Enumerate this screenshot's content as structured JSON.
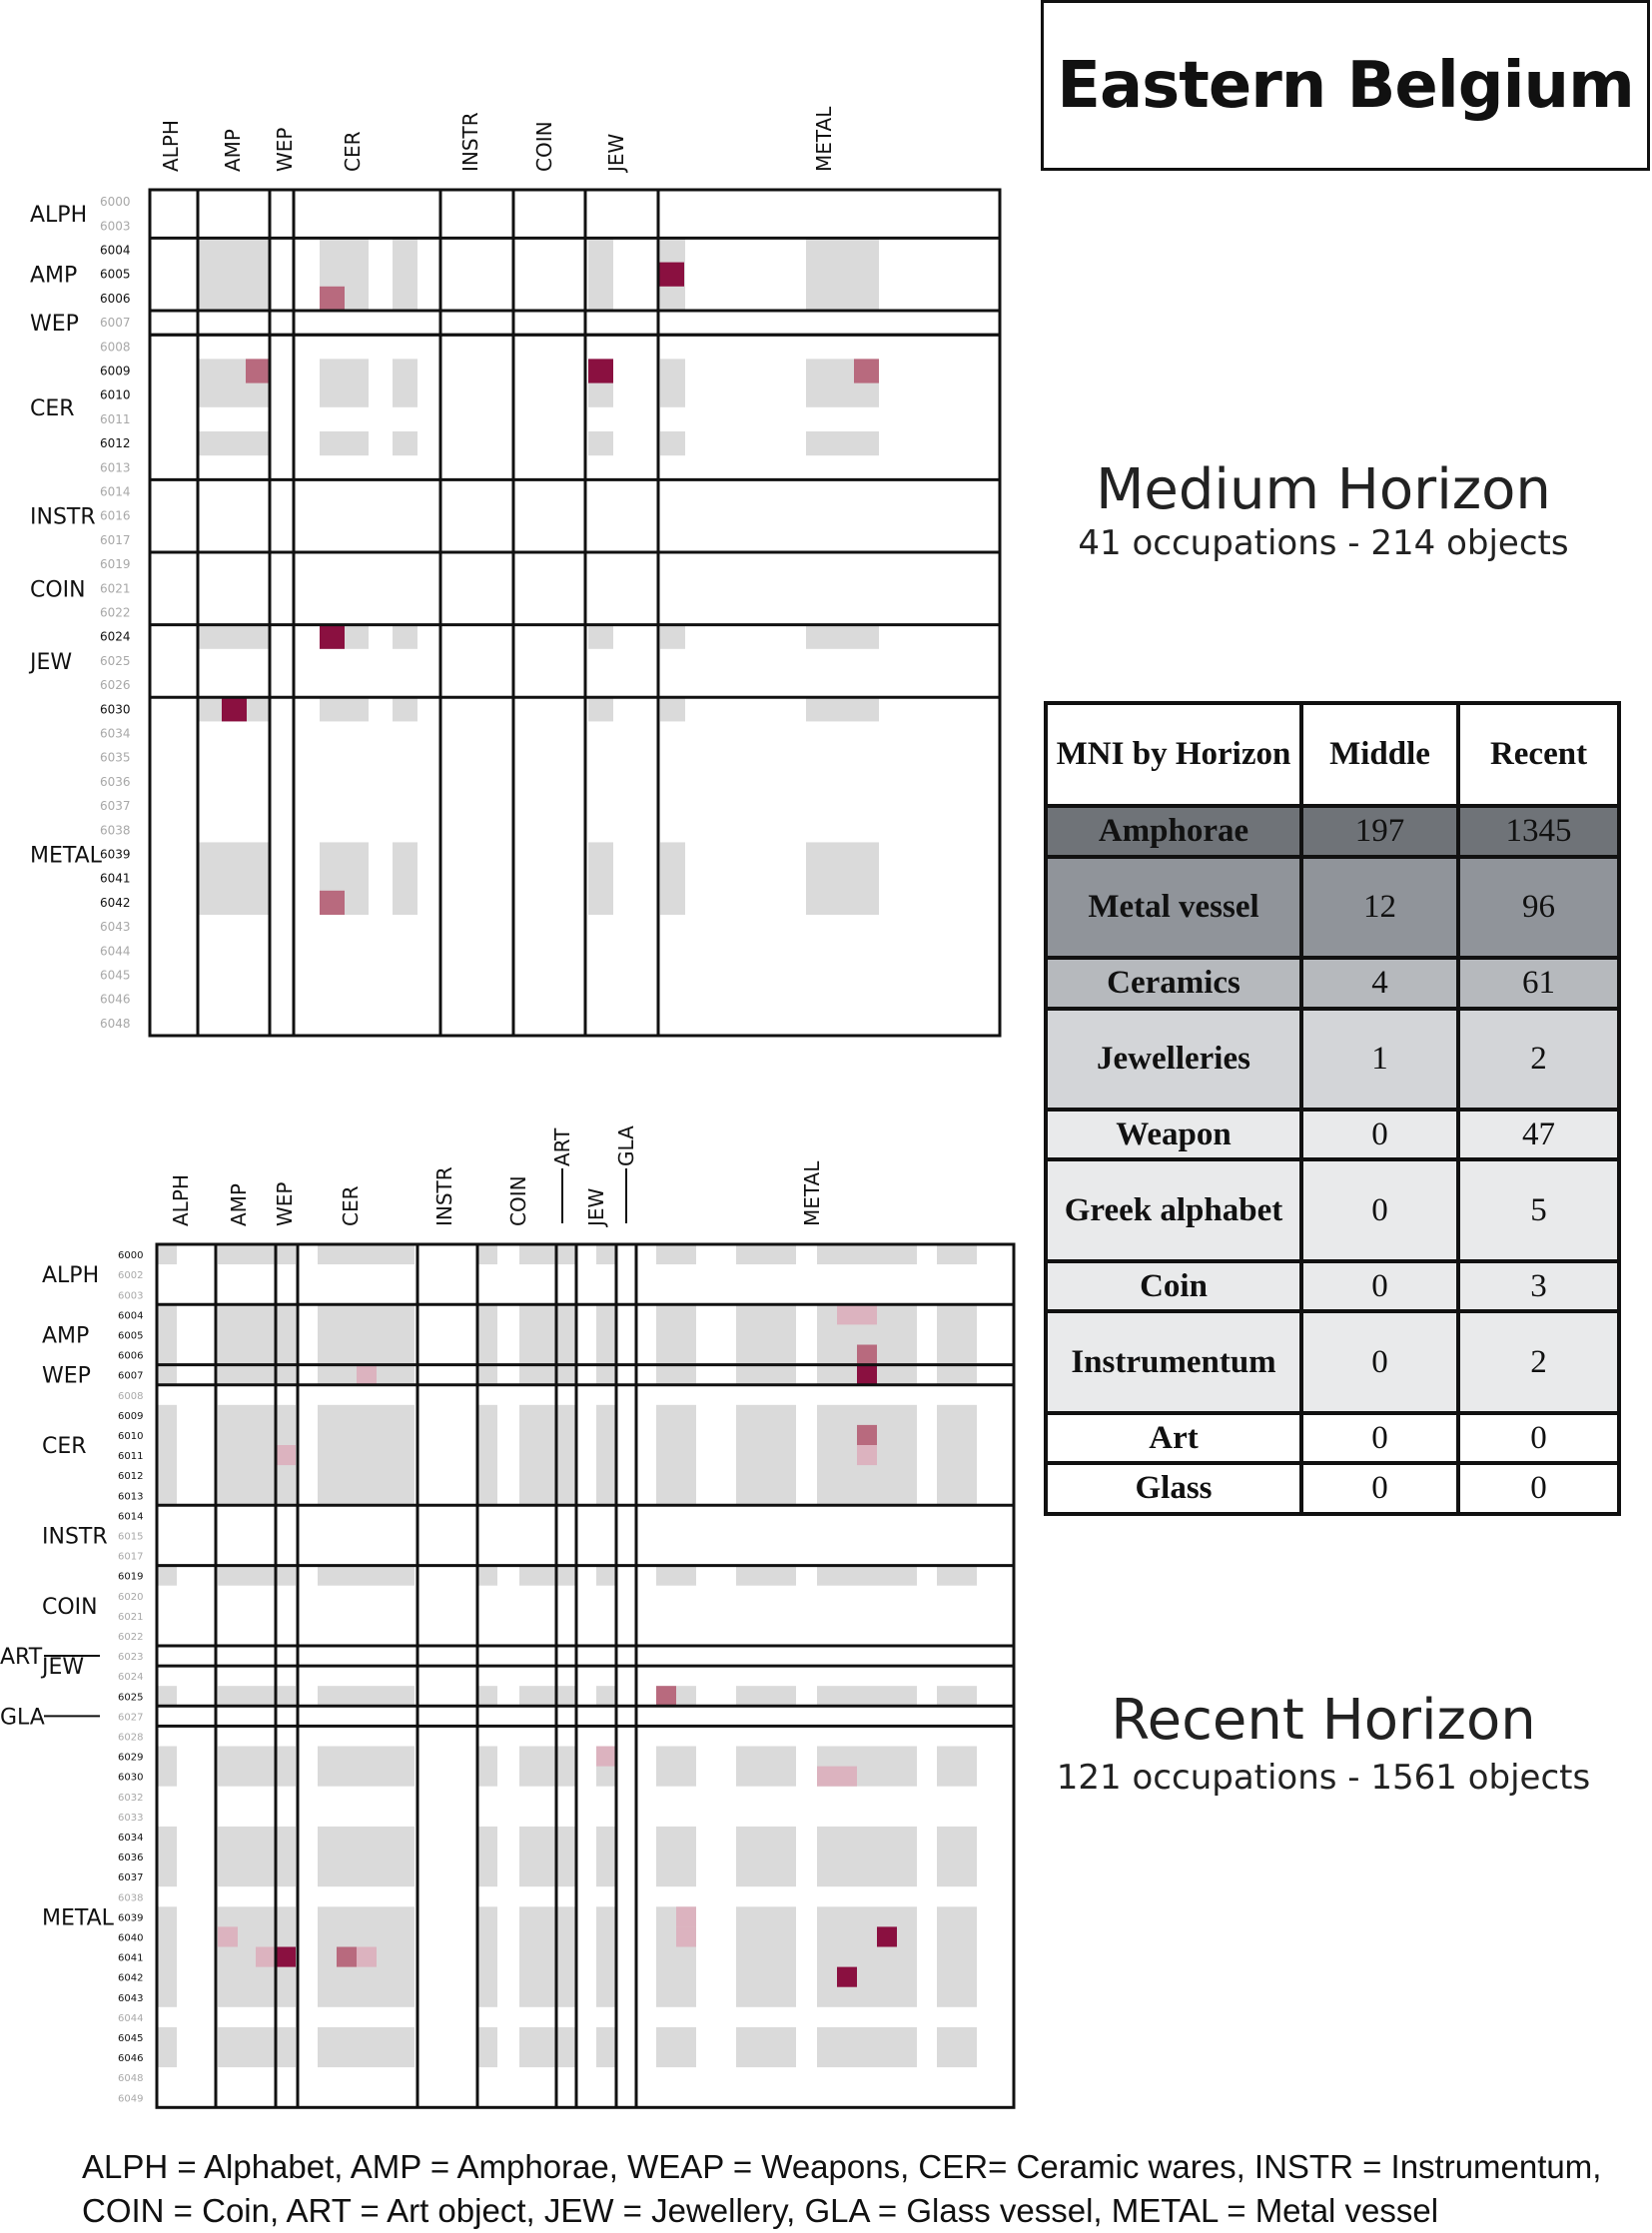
{
  "title": "Eastern Belgium",
  "colors": {
    "cell_gray": "#dadada",
    "dark": "#8a1040",
    "medium": "#b86a7e",
    "light": "#dcb3bf"
  },
  "medium_horizon": {
    "title": "Medium Horizon",
    "subtitle": "41 occupations - 214 objects"
  },
  "recent_horizon": {
    "title": "Recent Horizon",
    "subtitle": "121 occupations - 1561 objects"
  },
  "mni_table": {
    "header": [
      "MNI by Horizon",
      "Middle",
      "Recent"
    ],
    "rows": [
      {
        "category": "Amphorae",
        "middle": "197",
        "recent": "1345",
        "shade": "#6f7378"
      },
      {
        "category": "Metal vessel",
        "middle": "12",
        "recent": "96",
        "shade": "#90949a"
      },
      {
        "category": "Ceramics",
        "middle": "4",
        "recent": "61",
        "shade": "#b6b9bd"
      },
      {
        "category": "Jewelleries",
        "middle": "1",
        "recent": "2",
        "shade": "#d3d5d8"
      },
      {
        "category": "Weapon",
        "middle": "0",
        "recent": "47",
        "shade": "#e9eaeb"
      },
      {
        "category": "Greek alphabet",
        "middle": "0",
        "recent": "5",
        "shade": "#e9eaeb"
      },
      {
        "category": "Coin",
        "middle": "0",
        "recent": "3",
        "shade": "#e9eaeb"
      },
      {
        "category": "Instrumentum",
        "middle": "0",
        "recent": "2",
        "shade": "#e9eaeb"
      },
      {
        "category": "Art",
        "middle": "0",
        "recent": "0",
        "shade": "#ffffff"
      },
      {
        "category": "Glass",
        "middle": "0",
        "recent": "0",
        "shade": "#ffffff"
      }
    ]
  },
  "legend_lines": [
    "ALPH = Alphabet, AMP = Amphorae, WEAP = Weapons, CER= Ceramic wares, INSTR = Instrumentum,",
    "COIN = Coin, ART = Art object, JEW = Jewellery, GLA = Glass vessel, METAL = Metal vessel"
  ],
  "chart_data": [
    {
      "type": "heatmap",
      "title": "Medium Horizon",
      "codes": [
        "6000",
        "6003",
        "6004",
        "6005",
        "6006",
        "6007",
        "6008",
        "6009",
        "6010",
        "6011",
        "6012",
        "6013",
        "6014",
        "6016",
        "6017",
        "6019",
        "6021",
        "6022",
        "6024",
        "6025",
        "6026",
        "6030",
        "6034",
        "6035",
        "6036",
        "6037",
        "6038",
        "6039",
        "6041",
        "6042",
        "6043",
        "6044",
        "6045",
        "6046",
        "6048"
      ],
      "active_codes": [
        "6004",
        "6005",
        "6006",
        "6009",
        "6010",
        "6012",
        "6024",
        "6030",
        "6039",
        "6041",
        "6042"
      ],
      "row_groups": [
        {
          "label": "ALPH",
          "codes": [
            "6000",
            "6003"
          ]
        },
        {
          "label": "AMP",
          "codes": [
            "6004",
            "6005",
            "6006"
          ]
        },
        {
          "label": "WEP",
          "codes": [
            "6007"
          ]
        },
        {
          "label": "CER",
          "codes": [
            "6008",
            "6009",
            "6010",
            "6011",
            "6012",
            "6013"
          ]
        },
        {
          "label": "INSTR",
          "codes": [
            "6014",
            "6016",
            "6017"
          ]
        },
        {
          "label": "COIN",
          "codes": [
            "6019",
            "6021",
            "6022"
          ]
        },
        {
          "label": "JEW",
          "codes": [
            "6024",
            "6025",
            "6026"
          ]
        },
        {
          "label": "METAL",
          "codes": [
            "6030",
            "6034",
            "6035",
            "6036",
            "6037",
            "6038",
            "6039",
            "6041",
            "6042",
            "6043",
            "6044",
            "6045",
            "6046",
            "6048"
          ]
        }
      ],
      "col_groups": [
        "ALPH",
        "AMP",
        "WEP",
        "CER",
        "INSTR",
        "COIN",
        "JEW",
        "METAL"
      ],
      "gray_blocks": [
        {
          "cols": "AMP",
          "codes": [
            "6004",
            "6006"
          ]
        },
        {
          "cols": "CER",
          "codes": [
            "6004",
            "6006"
          ]
        },
        {
          "cols": "JEW",
          "codes": [
            "6004",
            "6006"
          ]
        },
        {
          "cols": "METAL",
          "codes": [
            "6004",
            "6006"
          ]
        },
        {
          "cols": "AMP",
          "codes": [
            "6009",
            "6010"
          ]
        },
        {
          "cols": "CER",
          "codes": [
            "6009",
            "6010"
          ]
        },
        {
          "cols": "JEW",
          "codes": [
            "6009",
            "6010"
          ]
        },
        {
          "cols": "METAL",
          "codes": [
            "6009",
            "6010"
          ]
        },
        {
          "cols": "AMP",
          "codes": [
            "6012",
            "6012"
          ]
        },
        {
          "cols": "CER",
          "codes": [
            "6012",
            "6012"
          ]
        },
        {
          "cols": "JEW",
          "codes": [
            "6012",
            "6012"
          ]
        },
        {
          "cols": "METAL",
          "codes": [
            "6012",
            "6012"
          ]
        },
        {
          "cols": "AMP",
          "codes": [
            "6024",
            "6024"
          ]
        },
        {
          "cols": "CER",
          "codes": [
            "6024",
            "6024"
          ]
        },
        {
          "cols": "JEW",
          "codes": [
            "6024",
            "6024"
          ]
        },
        {
          "cols": "METAL",
          "codes": [
            "6024",
            "6024"
          ]
        },
        {
          "cols": "AMP",
          "codes": [
            "6030",
            "6030"
          ]
        },
        {
          "cols": "CER",
          "codes": [
            "6030",
            "6030"
          ]
        },
        {
          "cols": "JEW",
          "codes": [
            "6030",
            "6030"
          ]
        },
        {
          "cols": "METAL",
          "codes": [
            "6030",
            "6030"
          ]
        },
        {
          "cols": "AMP",
          "codes": [
            "6039",
            "6042"
          ]
        },
        {
          "cols": "CER",
          "codes": [
            "6039",
            "6042"
          ]
        },
        {
          "cols": "JEW",
          "codes": [
            "6039",
            "6042"
          ]
        },
        {
          "cols": "METAL",
          "codes": [
            "6039",
            "6042"
          ]
        }
      ],
      "colored_cells": [
        {
          "row": "6005",
          "col": "JEW",
          "level": "dark"
        },
        {
          "row": "6006",
          "col": "CER",
          "level": "medium"
        },
        {
          "row": "6009",
          "col": "AMP",
          "level": "medium"
        },
        {
          "row": "6009",
          "col": "JEW",
          "level": "dark"
        },
        {
          "row": "6009",
          "col": "METAL",
          "level": "medium"
        },
        {
          "row": "6024",
          "col": "CER",
          "level": "dark"
        },
        {
          "row": "6030",
          "col": "AMP",
          "level": "dark"
        },
        {
          "row": "6042",
          "col": "CER",
          "level": "medium"
        }
      ]
    },
    {
      "type": "heatmap",
      "title": "Recent Horizon",
      "codes": [
        "6000",
        "6002",
        "6003",
        "6004",
        "6005",
        "6006",
        "6007",
        "6008",
        "6009",
        "6010",
        "6011",
        "6012",
        "6013",
        "6014",
        "6015",
        "6017",
        "6019",
        "6020",
        "6021",
        "6022",
        "6023",
        "6024",
        "6025",
        "6027",
        "6028",
        "6029",
        "6030",
        "6032",
        "6033",
        "6034",
        "6036",
        "6037",
        "6038",
        "6039",
        "6040",
        "6041",
        "6042",
        "6043",
        "6044",
        "6045",
        "6046",
        "6048",
        "6049"
      ],
      "active_codes": [
        "6000",
        "6004",
        "6005",
        "6006",
        "6007",
        "6009",
        "6010",
        "6011",
        "6012",
        "6013",
        "6014",
        "6019",
        "6025",
        "6029",
        "6030",
        "6034",
        "6036",
        "6037",
        "6039",
        "6040",
        "6041",
        "6042",
        "6043",
        "6045",
        "6046"
      ],
      "row_groups": [
        {
          "label": "ALPH",
          "codes": [
            "6000",
            "6002",
            "6003"
          ]
        },
        {
          "label": "AMP",
          "codes": [
            "6004",
            "6005",
            "6006"
          ]
        },
        {
          "label": "WEP",
          "codes": [
            "6007"
          ]
        },
        {
          "label": "CER",
          "codes": [
            "6008",
            "6009",
            "6010",
            "6011",
            "6012",
            "6013"
          ]
        },
        {
          "label": "INSTR",
          "codes": [
            "6014",
            "6015",
            "6017"
          ]
        },
        {
          "label": "COIN",
          "codes": [
            "6019",
            "6020",
            "6021",
            "6022"
          ]
        },
        {
          "label": "ART",
          "codes": [
            "6023"
          ]
        },
        {
          "label": "JEW",
          "codes": [
            "6024",
            "6025"
          ]
        },
        {
          "label": "GLA",
          "codes": [
            "6027"
          ]
        },
        {
          "label": "METAL",
          "codes": [
            "6028",
            "6029",
            "6030",
            "6032",
            "6033",
            "6034",
            "6036",
            "6037",
            "6038",
            "6039",
            "6040",
            "6041",
            "6042",
            "6043",
            "6044",
            "6045",
            "6046",
            "6048",
            "6049"
          ]
        }
      ],
      "col_groups": [
        "ALPH",
        "AMP",
        "WEP",
        "CER",
        "INSTR",
        "COIN",
        "ART",
        "JEW",
        "GLA",
        "METAL"
      ],
      "colored_cells": [
        {
          "row": "6004",
          "col": "METAL",
          "level": "light"
        },
        {
          "row": "6006",
          "col": "METAL",
          "level": "medium"
        },
        {
          "row": "6007",
          "col": "METAL",
          "level": "dark"
        },
        {
          "row": "6007",
          "col": "CER",
          "level": "light"
        },
        {
          "row": "6010",
          "col": "METAL",
          "level": "medium"
        },
        {
          "row": "6011",
          "col": "METAL",
          "level": "light"
        },
        {
          "row": "6011",
          "col": "WEP",
          "level": "light"
        },
        {
          "row": "6025",
          "col": "METAL",
          "level": "medium"
        },
        {
          "row": "6029",
          "col": "JEW",
          "level": "light"
        },
        {
          "row": "6030",
          "col": "METAL",
          "level": "light"
        },
        {
          "row": "6039",
          "col": "METAL",
          "level": "light"
        },
        {
          "row": "6040",
          "col": "METAL",
          "level": "dark"
        },
        {
          "row": "6040",
          "col": "AMP",
          "level": "light"
        },
        {
          "row": "6041",
          "col": "AMP",
          "level": "light"
        },
        {
          "row": "6041",
          "col": "WEP",
          "level": "dark"
        },
        {
          "row": "6041",
          "col": "CER",
          "level": "medium"
        },
        {
          "row": "6042",
          "col": "METAL",
          "level": "dark"
        }
      ]
    }
  ]
}
